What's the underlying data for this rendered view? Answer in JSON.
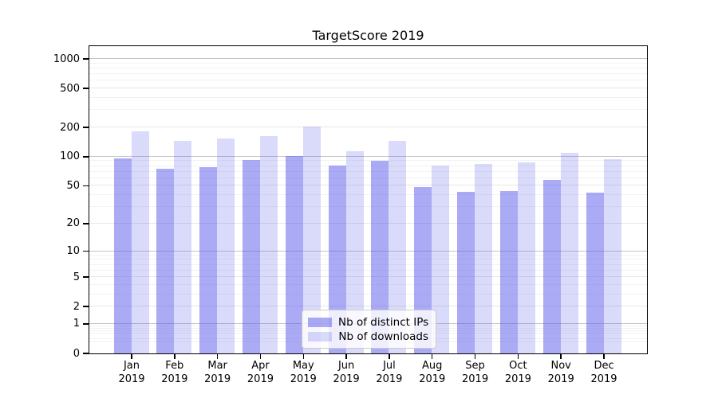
{
  "title": "TargetScore 2019",
  "chart_data": {
    "type": "bar",
    "title": "TargetScore 2019",
    "categories": [
      "Jan",
      "Feb",
      "Mar",
      "Apr",
      "May",
      "Jun",
      "Jul",
      "Aug",
      "Sep",
      "Oct",
      "Nov",
      "Dec"
    ],
    "year_label": "2019",
    "series": [
      {
        "name": "Nb of distinct IPs",
        "base_color": "#5656EB",
        "alpha": 0.5,
        "rendered_color": "#AAAAF2",
        "values": [
          95,
          75,
          78,
          91,
          100,
          80,
          90,
          48,
          43,
          44,
          57,
          42
        ]
      },
      {
        "name": "Nb of downloads",
        "base_color": "#5656EB",
        "alpha": 0.22,
        "rendered_color": "#DADAF8",
        "values": [
          182,
          144,
          151,
          162,
          202,
          112,
          144,
          80,
          83,
          86,
          108,
          94
        ]
      }
    ],
    "yscale": "log1p",
    "ylim": [
      0,
      1350
    ],
    "xlabel": "",
    "ylabel": "",
    "y_tick_labels": [
      "1000",
      "500",
      "200",
      "100",
      "50",
      "20",
      "10",
      "5",
      "2",
      "1",
      "0"
    ],
    "y_tick_values": [
      1000,
      500,
      200,
      100,
      50,
      20,
      10,
      5,
      2,
      1,
      0
    ],
    "grid": "both",
    "grid_major_color": "#c4c4c4",
    "grid_mid_color": "#e7e7e7",
    "grid_minor_color": "#f2f2f2",
    "legend_position": "lower-center"
  }
}
